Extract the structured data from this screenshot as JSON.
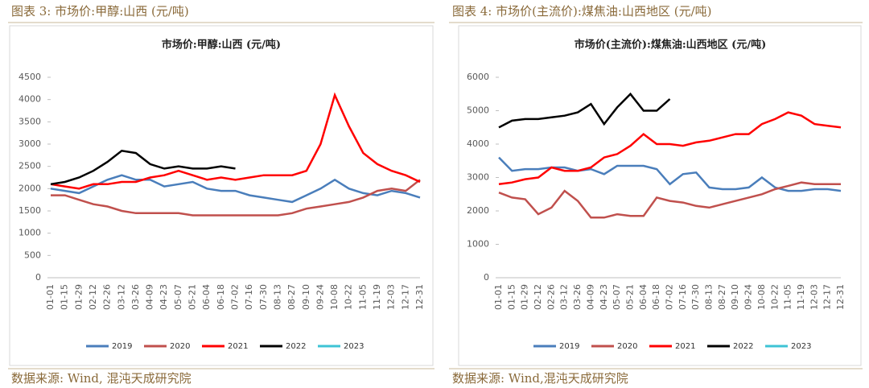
{
  "captions": [
    "图表 3:  市场价:甲醇:山西 (元/吨)",
    "图表 4:  市场价(主流价):煤焦油:山西地区 (元/吨)"
  ],
  "sources": [
    "数据来源:  Wind,  混沌天成研究院",
    "数据来源:  Wind,混沌天成研究院"
  ],
  "chart_data": [
    {
      "type": "line",
      "title": "市场价:甲醇:山西 (元/吨)",
      "categories": [
        "01-01",
        "01-15",
        "01-29",
        "02-12",
        "02-26",
        "03-12",
        "03-26",
        "04-09",
        "04-23",
        "05-07",
        "05-21",
        "06-04",
        "06-18",
        "07-02",
        "07-16",
        "07-30",
        "08-13",
        "08-27",
        "09-10",
        "09-24",
        "10-08",
        "10-22",
        "11-05",
        "11-19",
        "12-03",
        "12-17",
        "12-31"
      ],
      "ylim": [
        0,
        4500
      ],
      "yticks": [
        0,
        500,
        1000,
        1500,
        2000,
        2500,
        3000,
        3500,
        4000,
        4500
      ],
      "series": [
        {
          "name": "2019",
          "color": "#4a7ebb",
          "values": [
            2000,
            1950,
            1900,
            2050,
            2200,
            2300,
            2200,
            2200,
            2050,
            2100,
            2150,
            2000,
            1950,
            1950,
            1850,
            1800,
            1750,
            1700,
            1850,
            2000,
            2200,
            2000,
            1900,
            1850,
            1950,
            1900,
            1800
          ]
        },
        {
          "name": "2020",
          "color": "#c0504d",
          "values": [
            1850,
            1850,
            1750,
            1650,
            1600,
            1500,
            1450,
            1450,
            1450,
            1450,
            1400,
            1400,
            1400,
            1400,
            1400,
            1400,
            1400,
            1450,
            1550,
            1600,
            1650,
            1700,
            1800,
            1950,
            2000,
            1950,
            2200
          ]
        },
        {
          "name": "2021",
          "color": "#ff0000",
          "values": [
            2100,
            2050,
            2000,
            2100,
            2100,
            2150,
            2150,
            2250,
            2300,
            2400,
            2300,
            2200,
            2250,
            2200,
            2250,
            2300,
            2300,
            2300,
            2400,
            3000,
            4100,
            3400,
            2800,
            2550,
            2400,
            2300,
            2150
          ]
        },
        {
          "name": "2022",
          "color": "#000000",
          "values": [
            2100,
            2150,
            2250,
            2400,
            2600,
            2850,
            2800,
            2550,
            2450,
            2500,
            2450,
            2450,
            2500,
            2450,
            null,
            null,
            null,
            null,
            null,
            null,
            null,
            null,
            null,
            null,
            null,
            null,
            null
          ]
        },
        {
          "name": "2023",
          "color": "#3ec3d5",
          "values": [
            null,
            null,
            null,
            null,
            null,
            null,
            null,
            null,
            null,
            null,
            null,
            null,
            null,
            null,
            null,
            null,
            null,
            null,
            null,
            null,
            null,
            null,
            null,
            null,
            null,
            null,
            null
          ]
        }
      ]
    },
    {
      "type": "line",
      "title": "市场价(主流价):煤焦油:山西地区 (元/吨)",
      "categories": [
        "01-01",
        "01-15",
        "01-29",
        "02-12",
        "02-26",
        "03-12",
        "03-26",
        "04-09",
        "04-23",
        "05-07",
        "05-21",
        "06-04",
        "06-18",
        "07-02",
        "07-16",
        "07-30",
        "08-13",
        "08-27",
        "09-10",
        "09-24",
        "10-08",
        "10-22",
        "11-05",
        "11-19",
        "12-03",
        "12-17",
        "12-31"
      ],
      "ylim": [
        0,
        6000
      ],
      "yticks": [
        0,
        1000,
        2000,
        3000,
        4000,
        5000,
        6000
      ],
      "series": [
        {
          "name": "2019",
          "color": "#4a7ebb",
          "values": [
            3600,
            3200,
            3250,
            3250,
            3300,
            3300,
            3200,
            3250,
            3100,
            3350,
            3350,
            3350,
            3250,
            2800,
            3100,
            3150,
            2700,
            2650,
            2650,
            2700,
            3000,
            2700,
            2600,
            2600,
            2650,
            2650,
            2600
          ]
        },
        {
          "name": "2020",
          "color": "#c0504d",
          "values": [
            2550,
            2400,
            2350,
            1900,
            2100,
            2600,
            2300,
            1800,
            1800,
            1900,
            1850,
            1850,
            2400,
            2300,
            2250,
            2150,
            2100,
            2200,
            2300,
            2400,
            2500,
            2650,
            2750,
            2850,
            2800,
            2800,
            2800
          ]
        },
        {
          "name": "2021",
          "color": "#ff0000",
          "values": [
            2800,
            2850,
            2950,
            3000,
            3300,
            3200,
            3200,
            3300,
            3600,
            3700,
            3950,
            4300,
            4000,
            4000,
            3950,
            4050,
            4100,
            4200,
            4300,
            4300,
            4600,
            4750,
            4950,
            4850,
            4600,
            4550,
            4500
          ]
        },
        {
          "name": "2022",
          "color": "#000000",
          "values": [
            4500,
            4700,
            4750,
            4750,
            4800,
            4850,
            4950,
            5200,
            4600,
            5100,
            5500,
            5000,
            5000,
            5350,
            null,
            null,
            null,
            null,
            null,
            null,
            null,
            null,
            null,
            null,
            null,
            null,
            null
          ]
        },
        {
          "name": "2023",
          "color": "#3ec3d5",
          "values": [
            null,
            null,
            null,
            null,
            null,
            null,
            null,
            null,
            null,
            null,
            null,
            null,
            null,
            null,
            null,
            null,
            null,
            null,
            null,
            null,
            null,
            null,
            null,
            null,
            null,
            null,
            null
          ]
        }
      ]
    }
  ]
}
